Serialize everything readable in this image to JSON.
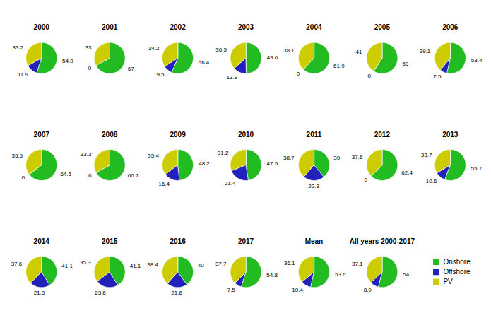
{
  "chart_data": [
    {
      "type": "pie",
      "title": "2000",
      "categories": [
        "Onshore",
        "Offshore",
        "PV"
      ],
      "values": [
        54.9,
        11.9,
        33.2
      ],
      "colors": [
        "#22bb22",
        "#2222bb",
        "#cccc00"
      ],
      "data_labels": true
    },
    {
      "type": "pie",
      "title": "2001",
      "categories": [
        "Onshore",
        "Offshore",
        "PV"
      ],
      "values": [
        67,
        0,
        33
      ],
      "colors": [
        "#22bb22",
        "#2222bb",
        "#cccc00"
      ],
      "data_labels": true
    },
    {
      "type": "pie",
      "title": "2002",
      "categories": [
        "Onshore",
        "Offshore",
        "PV"
      ],
      "values": [
        56.4,
        9.5,
        34.2
      ],
      "colors": [
        "#22bb22",
        "#2222bb",
        "#cccc00"
      ],
      "data_labels": true
    },
    {
      "type": "pie",
      "title": "2003",
      "categories": [
        "Onshore",
        "Offshore",
        "PV"
      ],
      "values": [
        49.6,
        13.9,
        36.5
      ],
      "colors": [
        "#22bb22",
        "#2222bb",
        "#cccc00"
      ],
      "data_labels": true
    },
    {
      "type": "pie",
      "title": "2004",
      "categories": [
        "Onshore",
        "Offshore",
        "PV"
      ],
      "values": [
        61.9,
        0,
        38.1
      ],
      "colors": [
        "#22bb22",
        "#2222bb",
        "#cccc00"
      ],
      "data_labels": true
    },
    {
      "type": "pie",
      "title": "2005",
      "categories": [
        "Onshore",
        "Offshore",
        "PV"
      ],
      "values": [
        59,
        0,
        41
      ],
      "colors": [
        "#22bb22",
        "#2222bb",
        "#cccc00"
      ],
      "data_labels": true
    },
    {
      "type": "pie",
      "title": "2006",
      "categories": [
        "Onshore",
        "Offshore",
        "PV"
      ],
      "values": [
        53.4,
        7.5,
        39.1
      ],
      "colors": [
        "#22bb22",
        "#2222bb",
        "#cccc00"
      ],
      "data_labels": true
    },
    {
      "type": "pie",
      "title": "2007",
      "categories": [
        "Onshore",
        "Offshore",
        "PV"
      ],
      "values": [
        64.5,
        0,
        35.5
      ],
      "colors": [
        "#22bb22",
        "#2222bb",
        "#cccc00"
      ],
      "data_labels": true
    },
    {
      "type": "pie",
      "title": "2008",
      "categories": [
        "Onshore",
        "Offshore",
        "PV"
      ],
      "values": [
        66.7,
        0,
        33.3
      ],
      "colors": [
        "#22bb22",
        "#2222bb",
        "#cccc00"
      ],
      "data_labels": true
    },
    {
      "type": "pie",
      "title": "2009",
      "categories": [
        "Onshore",
        "Offshore",
        "PV"
      ],
      "values": [
        48.2,
        16.4,
        35.4
      ],
      "colors": [
        "#22bb22",
        "#2222bb",
        "#cccc00"
      ],
      "data_labels": true
    },
    {
      "type": "pie",
      "title": "2010",
      "categories": [
        "Onshore",
        "Offshore",
        "PV"
      ],
      "values": [
        47.5,
        21.4,
        31.2
      ],
      "colors": [
        "#22bb22",
        "#2222bb",
        "#cccc00"
      ],
      "data_labels": true
    },
    {
      "type": "pie",
      "title": "2011",
      "categories": [
        "Onshore",
        "Offshore",
        "PV"
      ],
      "values": [
        39,
        22.3,
        38.7
      ],
      "colors": [
        "#22bb22",
        "#2222bb",
        "#cccc00"
      ],
      "data_labels": true
    },
    {
      "type": "pie",
      "title": "2012",
      "categories": [
        "Onshore",
        "Offshore",
        "PV"
      ],
      "values": [
        62.4,
        0,
        37.6
      ],
      "colors": [
        "#22bb22",
        "#2222bb",
        "#cccc00"
      ],
      "data_labels": true
    },
    {
      "type": "pie",
      "title": "2013",
      "categories": [
        "Onshore",
        "Offshore",
        "PV"
      ],
      "values": [
        55.7,
        10.6,
        33.7
      ],
      "colors": [
        "#22bb22",
        "#2222bb",
        "#cccc00"
      ],
      "data_labels": true
    },
    {
      "type": "pie",
      "title": "2014",
      "categories": [
        "Onshore",
        "Offshore",
        "PV"
      ],
      "values": [
        41.1,
        21.3,
        37.6
      ],
      "colors": [
        "#22bb22",
        "#2222bb",
        "#cccc00"
      ],
      "data_labels": true
    },
    {
      "type": "pie",
      "title": "2015",
      "categories": [
        "Onshore",
        "Offshore",
        "PV"
      ],
      "values": [
        41.1,
        23.6,
        35.3
      ],
      "colors": [
        "#22bb22",
        "#2222bb",
        "#cccc00"
      ],
      "data_labels": true
    },
    {
      "type": "pie",
      "title": "2016",
      "categories": [
        "Onshore",
        "Offshore",
        "PV"
      ],
      "values": [
        40,
        21.6,
        38.4
      ],
      "colors": [
        "#22bb22",
        "#2222bb",
        "#cccc00"
      ],
      "data_labels": true
    },
    {
      "type": "pie",
      "title": "2017",
      "categories": [
        "Onshore",
        "Offshore",
        "PV"
      ],
      "values": [
        54.8,
        7.5,
        37.7
      ],
      "colors": [
        "#22bb22",
        "#2222bb",
        "#cccc00"
      ],
      "data_labels": true
    },
    {
      "type": "pie",
      "title": "Mean",
      "categories": [
        "Onshore",
        "Offshore",
        "PV"
      ],
      "values": [
        53.6,
        10.4,
        36.1
      ],
      "colors": [
        "#22bb22",
        "#2222bb",
        "#cccc00"
      ],
      "data_labels": true
    },
    {
      "type": "pie",
      "title": "All years 2000-2017",
      "categories": [
        "Onshore",
        "Offshore",
        "PV"
      ],
      "values": [
        54,
        8.9,
        37.1
      ],
      "colors": [
        "#22bb22",
        "#2222bb",
        "#cccc00"
      ],
      "data_labels": true,
      "legend": "lower right"
    }
  ]
}
